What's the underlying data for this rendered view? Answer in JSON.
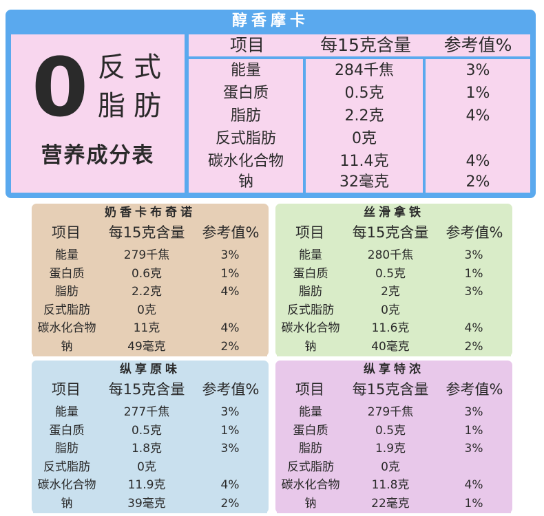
{
  "colors": {
    "top_panel": "#5aa9ee",
    "top_cells": "#f8d6ee",
    "hazelnut": "#e6cfb6",
    "silky": "#d9ecc8",
    "original": "#c9e0ee",
    "strong": "#e8c8ea"
  },
  "headers": {
    "item": "项目",
    "amount": "每15克含量",
    "nrv": "参考值%"
  },
  "top": {
    "title": "醇香摩卡",
    "big_zero": "0",
    "line1": "反式",
    "line2": "脂肪",
    "subtitle": "营养成分表",
    "rows": [
      {
        "item": "能量",
        "amount": "284千焦",
        "nrv": "3%"
      },
      {
        "item": "蛋白质",
        "amount": "0.5克",
        "nrv": "1%"
      },
      {
        "item": "脂肪",
        "amount": "2.2克",
        "nrv": "4%"
      },
      {
        "item": "反式脂肪",
        "amount": "0克",
        "nrv": ""
      },
      {
        "item": "碳水化合物",
        "amount": "11.4克",
        "nrv": "4%"
      },
      {
        "item": "钠",
        "amount": "32毫克",
        "nrv": "2%"
      }
    ]
  },
  "panels": [
    {
      "title": "奶香卡布奇诺",
      "rows": [
        {
          "item": "能量",
          "amount": "279千焦",
          "nrv": "3%"
        },
        {
          "item": "蛋白质",
          "amount": "0.6克",
          "nrv": "1%"
        },
        {
          "item": "脂肪",
          "amount": "2.2克",
          "nrv": "4%"
        },
        {
          "item": "反式脂肪",
          "amount": "0克",
          "nrv": ""
        },
        {
          "item": "碳水化合物",
          "amount": "11克",
          "nrv": "4%"
        },
        {
          "item": "钠",
          "amount": "49毫克",
          "nrv": "2%"
        }
      ]
    },
    {
      "title": "丝滑拿铁",
      "rows": [
        {
          "item": "能量",
          "amount": "280千焦",
          "nrv": "3%"
        },
        {
          "item": "蛋白质",
          "amount": "0.5克",
          "nrv": "1%"
        },
        {
          "item": "脂肪",
          "amount": "2克",
          "nrv": "3%"
        },
        {
          "item": "反式脂肪",
          "amount": "0克",
          "nrv": ""
        },
        {
          "item": "碳水化合物",
          "amount": "11.6克",
          "nrv": "4%"
        },
        {
          "item": "钠",
          "amount": "40毫克",
          "nrv": "2%"
        }
      ]
    },
    {
      "title": "纵享原味",
      "rows": [
        {
          "item": "能量",
          "amount": "277千焦",
          "nrv": "3%"
        },
        {
          "item": "蛋白质",
          "amount": "0.5克",
          "nrv": "1%"
        },
        {
          "item": "脂肪",
          "amount": "1.8克",
          "nrv": "3%"
        },
        {
          "item": "反式脂肪",
          "amount": "0克",
          "nrv": ""
        },
        {
          "item": "碳水化合物",
          "amount": "11.9克",
          "nrv": "4%"
        },
        {
          "item": "钠",
          "amount": "39毫克",
          "nrv": "2%"
        }
      ]
    },
    {
      "title": "纵享特浓",
      "rows": [
        {
          "item": "能量",
          "amount": "279千焦",
          "nrv": "3%"
        },
        {
          "item": "蛋白质",
          "amount": "0.5克",
          "nrv": "1%"
        },
        {
          "item": "脂肪",
          "amount": "1.9克",
          "nrv": "3%"
        },
        {
          "item": "反式脂肪",
          "amount": "0克",
          "nrv": ""
        },
        {
          "item": "碳水化合物",
          "amount": "11.8克",
          "nrv": "4%"
        },
        {
          "item": "钠",
          "amount": "22毫克",
          "nrv": "1%"
        }
      ]
    }
  ]
}
